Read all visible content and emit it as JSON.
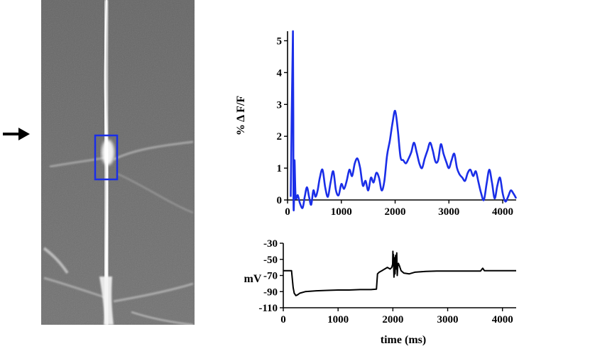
{
  "colors": {
    "fluorescence_trace": "#1a2ee8",
    "voltage_trace": "#000000",
    "roi_box": "#1a2ee8",
    "image_background": "#6a6a6a"
  },
  "micrograph": {
    "arrow_icon": "right-arrow-icon",
    "roi": "rectangle"
  },
  "chart_data": [
    {
      "type": "line",
      "title": "",
      "xlabel": "",
      "ylabel": "% Δ F/F",
      "xlim": [
        0,
        4250
      ],
      "ylim": [
        0,
        5.3
      ],
      "x_ticks": [
        "0",
        "1000",
        "2000",
        "3000",
        "4000"
      ],
      "y_ticks": [
        "0",
        "1",
        "2",
        "3",
        "4",
        "5"
      ],
      "grid": false,
      "series": [
        {
          "x": [
            60,
            100,
            110,
            120,
            130,
            150,
            190,
            230,
            280,
            320,
            360,
            400,
            440,
            480,
            520,
            560,
            600,
            650,
            700,
            750,
            800,
            850,
            900,
            950,
            1000,
            1050,
            1100,
            1150,
            1200,
            1250,
            1300,
            1350,
            1400,
            1450,
            1500,
            1550,
            1600,
            1650,
            1700,
            1750,
            1800,
            1850,
            1900,
            1950,
            2000,
            2050,
            2100,
            2150,
            2200,
            2250,
            2300,
            2350,
            2400,
            2450,
            2500,
            2550,
            2600,
            2650,
            2700,
            2750,
            2800,
            2850,
            2900,
            2950,
            3000,
            3050,
            3100,
            3150,
            3200,
            3250,
            3300,
            3350,
            3400,
            3450,
            3500,
            3550,
            3600,
            3650,
            3700,
            3750,
            3800,
            3850,
            3900,
            3950,
            4000,
            4050,
            4100,
            4150,
            4200,
            4250
          ],
          "y": [
            0.1,
            5.3,
            0.2,
            -0.05,
            1.25,
            0.1,
            0.15,
            -0.1,
            -0.25,
            0.1,
            0.4,
            0.1,
            -0.15,
            0.3,
            0.1,
            0.3,
            0.7,
            0.95,
            0.4,
            0.1,
            0.55,
            0.9,
            0.3,
            0.15,
            0.5,
            0.35,
            0.6,
            0.95,
            0.75,
            1.15,
            1.3,
            1.0,
            0.45,
            0.6,
            0.3,
            0.7,
            0.55,
            0.85,
            0.7,
            0.3,
            0.6,
            1.4,
            1.85,
            2.4,
            2.8,
            2.2,
            1.35,
            1.25,
            1.15,
            1.3,
            1.5,
            1.8,
            1.5,
            1.15,
            1.0,
            1.3,
            1.55,
            1.8,
            1.55,
            1.2,
            1.25,
            1.75,
            1.45,
            1.2,
            1.0,
            1.25,
            1.45,
            1.0,
            0.8,
            0.7,
            0.6,
            0.85,
            0.95,
            0.75,
            0.9,
            0.55,
            0.2,
            0.0,
            0.5,
            0.95,
            0.55,
            0.05,
            0.45,
            0.7,
            0.2,
            -0.05,
            0.1,
            0.3,
            0.2,
            0.05
          ]
        }
      ]
    },
    {
      "type": "line",
      "title": "",
      "xlabel": "time (ms)",
      "ylabel": "mV",
      "xlim": [
        0,
        4250
      ],
      "ylim": [
        -110,
        -30
      ],
      "x_ticks": [
        "0",
        "1000",
        "2000",
        "3000",
        "4000"
      ],
      "y_ticks": [
        "-30",
        "-50",
        "-70",
        "-90",
        "-110"
      ],
      "grid": false,
      "series": [
        {
          "x": [
            0,
            60,
            150,
            180,
            200,
            230,
            260,
            300,
            400,
            600,
            800,
            1000,
            1200,
            1400,
            1600,
            1700,
            1720,
            1750,
            1800,
            1850,
            1900,
            1950,
            1980,
            1995,
            2000,
            2005,
            2010,
            2020,
            2030,
            2040,
            2050,
            2060,
            2070,
            2080,
            2090,
            2100,
            2120,
            2150,
            2200,
            2300,
            2400,
            2600,
            2800,
            3000,
            3200,
            3400,
            3600,
            3640,
            3650,
            3670,
            3700,
            3800,
            4000,
            4250
          ],
          "y": [
            -64,
            -64,
            -64,
            -85,
            -92,
            -95,
            -94,
            -92,
            -90,
            -89,
            -88.5,
            -88,
            -88,
            -87.5,
            -87.5,
            -87,
            -68,
            -66,
            -64,
            -62,
            -60,
            -62,
            -60,
            -56,
            -40,
            -58,
            -44,
            -72,
            -48,
            -68,
            -45,
            -62,
            -42,
            -70,
            -58,
            -55,
            -58,
            -64,
            -67,
            -68,
            -66,
            -65,
            -64.5,
            -64.5,
            -64.5,
            -64.5,
            -64.5,
            -61,
            -62,
            -64,
            -64,
            -64,
            -64,
            -64
          ]
        }
      ]
    }
  ]
}
